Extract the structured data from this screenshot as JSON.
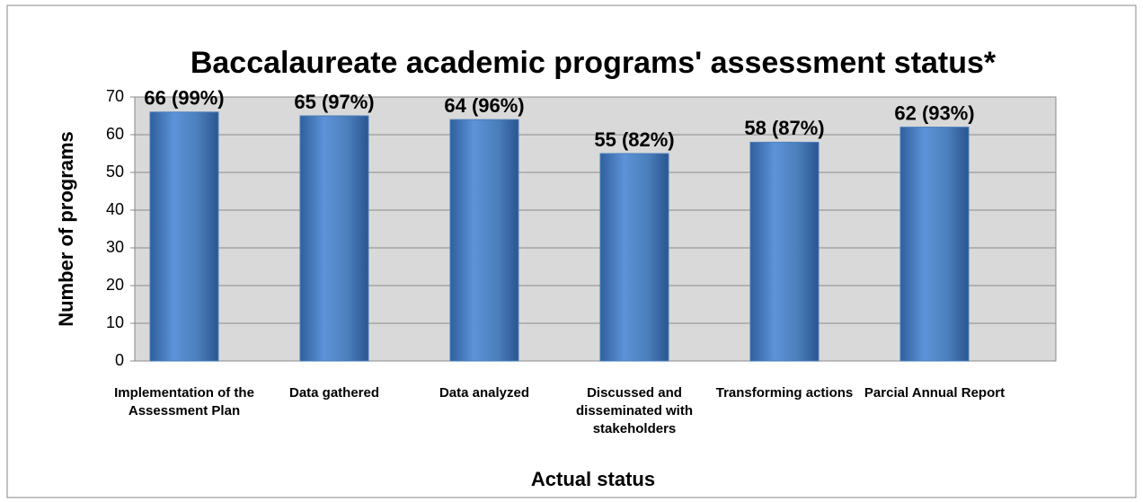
{
  "chart_data": {
    "type": "bar",
    "title": "Baccalaureate academic programs' assessment status*",
    "y_label": "Number of programs",
    "x_label": "Actual status",
    "categories": [
      "Implementation of the Assessment Plan",
      "Data gathered",
      "Data analyzed",
      "Discussed and disseminated with stakeholders",
      "Transforming actions",
      "Parcial Annual Report"
    ],
    "values": [
      66,
      65,
      64,
      55,
      58,
      62
    ],
    "value_labels": [
      "66 (99%)",
      "65 (97%)",
      "64 (96%)",
      "55 (82%)",
      "58 (87%)",
      "62 (93%)"
    ],
    "color": "#4a7ebb",
    "ylim": [
      0,
      70
    ],
    "yticks": [
      0,
      10,
      20,
      30,
      40,
      50,
      60,
      70
    ],
    "grid": true
  }
}
